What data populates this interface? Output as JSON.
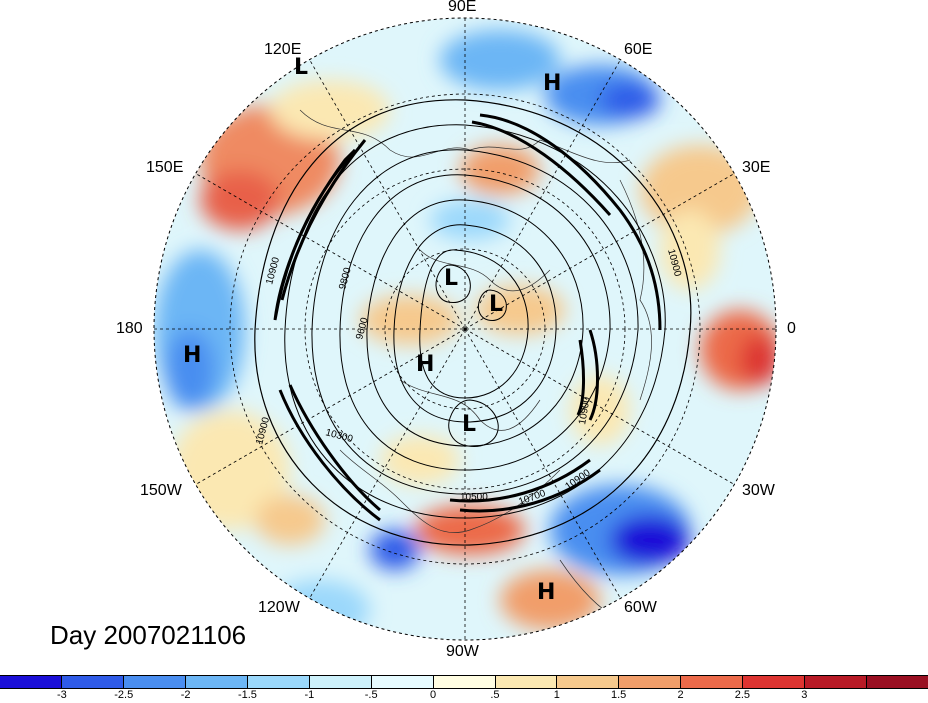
{
  "map": {
    "title": "Day 2007021106",
    "longitude_labels": [
      {
        "text": "90E",
        "id": "lon-90e"
      },
      {
        "text": "60E",
        "id": "lon-60e"
      },
      {
        "text": "30E",
        "id": "lon-30e"
      },
      {
        "text": "0",
        "id": "lon-0"
      },
      {
        "text": "30W",
        "id": "lon-30w"
      },
      {
        "text": "60W",
        "id": "lon-60w"
      },
      {
        "text": "90W",
        "id": "lon-90w"
      },
      {
        "text": "120W",
        "id": "lon-120w"
      },
      {
        "text": "150W",
        "id": "lon-150w"
      },
      {
        "text": "180",
        "id": "lon-180"
      },
      {
        "text": "150E",
        "id": "lon-150e"
      },
      {
        "text": "120E",
        "id": "lon-120e"
      }
    ],
    "pressure_systems": [
      {
        "label": "L",
        "id": "sys-l-120e"
      },
      {
        "label": "H",
        "id": "sys-h-60e"
      },
      {
        "label": "L",
        "id": "sys-l-center-1"
      },
      {
        "label": "L",
        "id": "sys-l-center-2"
      },
      {
        "label": "H",
        "id": "sys-h-center"
      },
      {
        "label": "L",
        "id": "sys-l-center-3"
      },
      {
        "label": "H",
        "id": "sys-h-180"
      },
      {
        "label": "H",
        "id": "sys-h-60w"
      }
    ],
    "contour_labels": [
      "10900",
      "10900",
      "10900",
      "10900",
      "10900",
      "9800",
      "9600",
      "10300",
      "10500",
      "10700",
      "10600",
      "10600",
      "10900",
      "10900",
      "10800",
      "10000"
    ]
  },
  "colorbar": {
    "colors": [
      "#1b0fd8",
      "#2f5be8",
      "#4a8ef0",
      "#6cb6f5",
      "#9bd8fb",
      "#cdf1fb",
      "#e6fbff",
      "#fffde2",
      "#fbe8b2",
      "#f6c98d",
      "#f19e6a",
      "#ec6a4a",
      "#dd3431",
      "#b81a26",
      "#9a0f22"
    ],
    "tick_labels": [
      "-3",
      "-2.5",
      "-2",
      "-1.5",
      "-1",
      "-.5",
      "0",
      ".5",
      "1",
      "1.5",
      "2",
      "2.5",
      "3"
    ]
  }
}
